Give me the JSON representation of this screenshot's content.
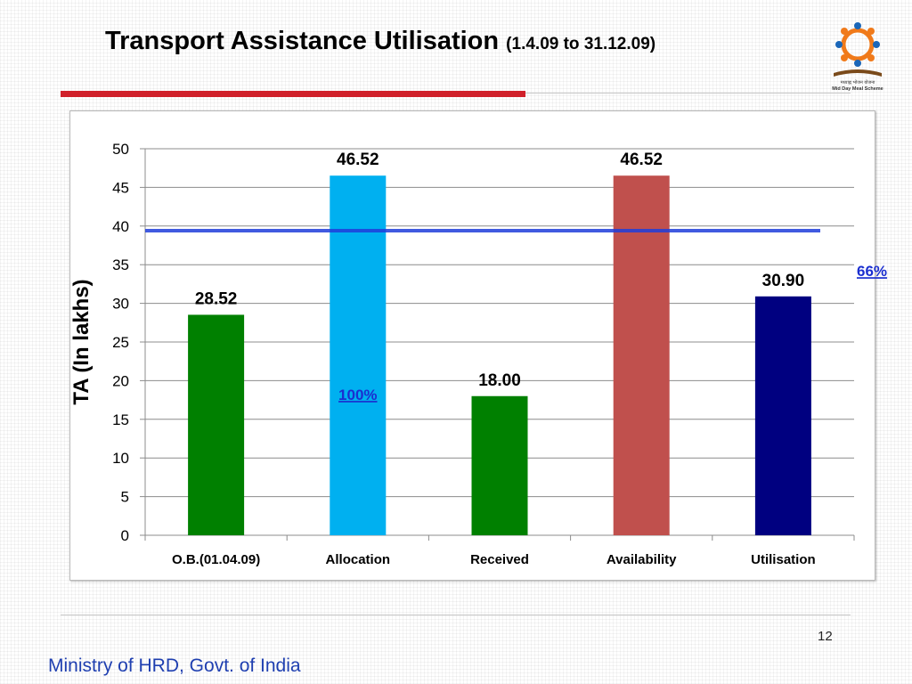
{
  "slide": {
    "title": "Transport Assistance Utilisation",
    "title_sub": "(1.4.09 to 31.12.09)",
    "logo_text_hi": "मध्याह्न भोजन योजना",
    "logo_text_en": "Mid Day Meal Scheme",
    "page_number": "12",
    "footer": "Ministry of HRD, Govt. of India"
  },
  "chart_data": {
    "type": "bar",
    "title": "",
    "ylabel": "TA (In lakhs)",
    "xlabel": "",
    "categories": [
      "O.B.(01.04.09)",
      "Allocation",
      "Received",
      "Availability",
      "Utilisation"
    ],
    "values": [
      28.52,
      46.52,
      18.0,
      46.52,
      30.9
    ],
    "value_labels": [
      "28.52",
      "46.52",
      "18.00",
      "46.52",
      "30.90"
    ],
    "bar_colors": [
      "#008000",
      "#00b0f0",
      "#008000",
      "#c0504d",
      "#000080"
    ],
    "ylim": [
      0,
      50
    ],
    "yticks": [
      0,
      5,
      10,
      15,
      20,
      25,
      30,
      35,
      40,
      45,
      50
    ],
    "grid": true,
    "reference_line": {
      "value": 39.4,
      "color": "#1f3ddb"
    },
    "annotations": [
      {
        "text": "100%",
        "category": "Allocation",
        "y": 17.5
      },
      {
        "text": "66%",
        "category": "Utilisation",
        "y": 33.5
      }
    ]
  },
  "colors": {
    "accent_red": "#d0202a",
    "footer_blue": "#1f3fb0",
    "annotation_blue": "#1b2fd0"
  }
}
